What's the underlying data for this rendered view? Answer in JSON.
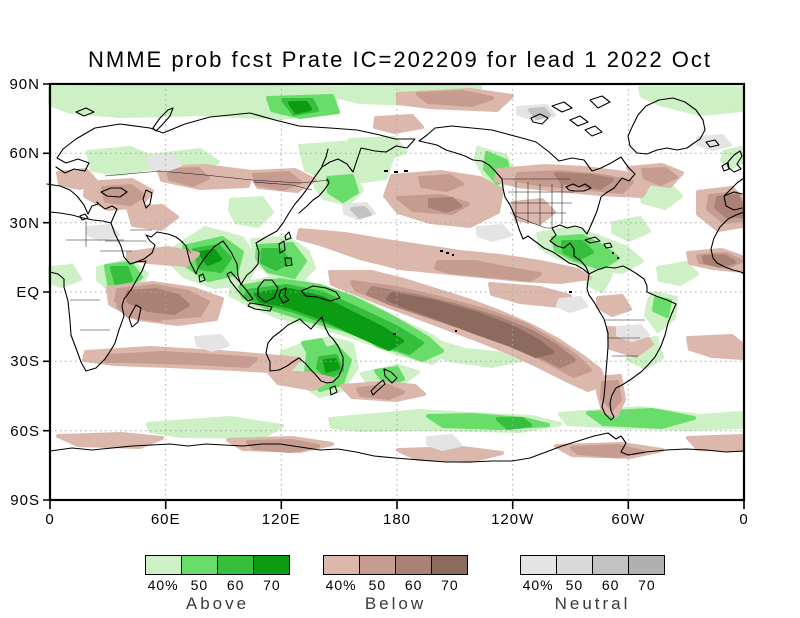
{
  "title": "NMME prob fcst Prate IC=202209 for lead 1 2022 Oct",
  "map": {
    "lat_labels": [
      "90N",
      "60N",
      "30N",
      "EQ",
      "30S",
      "60S",
      "90S"
    ],
    "lon_labels": [
      "0",
      "60E",
      "120E",
      "180",
      "120W",
      "60W",
      "0"
    ]
  },
  "legend": {
    "thresholds": [
      "40%",
      "50",
      "60",
      "70"
    ],
    "groups": [
      {
        "label": "Above",
        "colors": [
          "#cdf0c5",
          "#69dd69",
          "#35bf3c",
          "#0c9c13"
        ]
      },
      {
        "label": "Below",
        "colors": [
          "#dcb8ac",
          "#c69c90",
          "#aa8275",
          "#8d6a5e"
        ]
      },
      {
        "label": "Neutral",
        "colors": [
          "#e4e4e4",
          "#d9d9d9",
          "#c2c2c2",
          "#b0b0b0"
        ]
      }
    ]
  }
}
